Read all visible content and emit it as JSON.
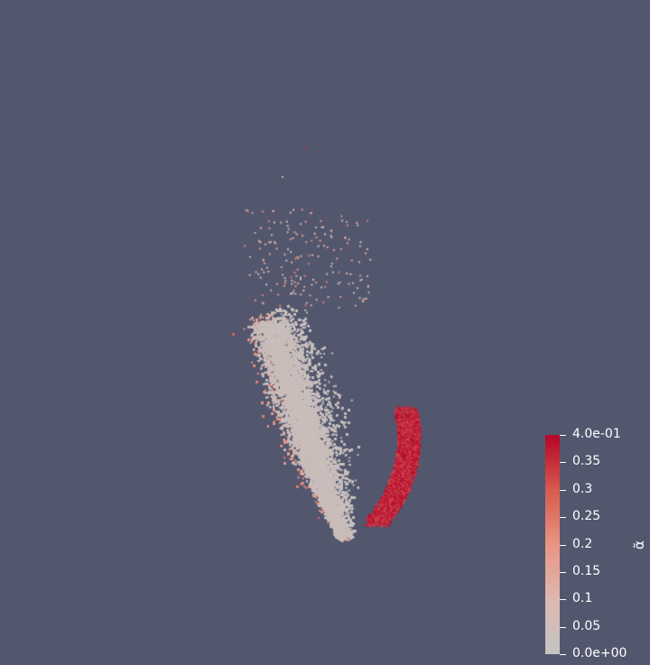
{
  "colors": {
    "background": "#52576e",
    "colormap_low": "#c4c4c4",
    "colormap_mid": "#e8907e",
    "colormap_high": "#b40426"
  },
  "legend": {
    "title": "α̃",
    "ticks": [
      {
        "value": 0.4,
        "label": "4.0e-01"
      },
      {
        "value": 0.35,
        "label": "0.35"
      },
      {
        "value": 0.3,
        "label": "0.3"
      },
      {
        "value": 0.25,
        "label": "0.25"
      },
      {
        "value": 0.2,
        "label": "0.2"
      },
      {
        "value": 0.15,
        "label": "0.15"
      },
      {
        "value": 0.1,
        "label": "0.1"
      },
      {
        "value": 0.05,
        "label": "0.05"
      },
      {
        "value": 0.0,
        "label": "0.0e+00"
      }
    ],
    "range": [
      0.0,
      0.4
    ]
  }
}
